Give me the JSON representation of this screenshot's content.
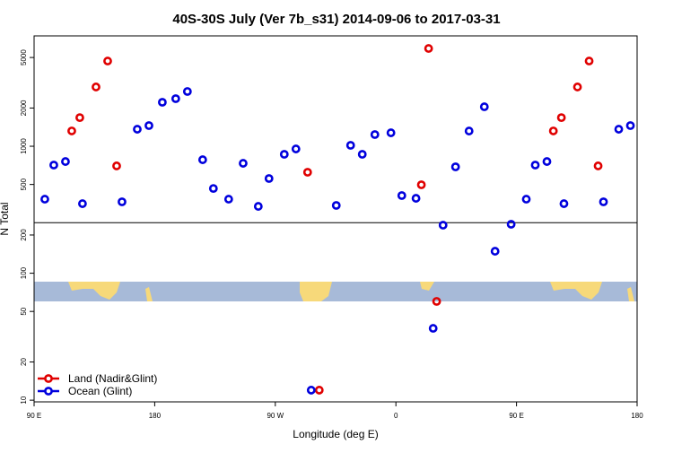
{
  "chart_data": {
    "type": "scatter",
    "title": "40S-30S July (Ver 7b_s31)   2014-09-06 to 2017-03-31",
    "xlabel": "Longitude (deg E)",
    "ylabel": "N Total",
    "xlim": [
      90,
      540
    ],
    "xticks": [
      {
        "value": 90,
        "label": "90 E"
      },
      {
        "value": 180,
        "label": "180"
      },
      {
        "value": 270,
        "label": "90 W"
      },
      {
        "value": 360,
        "label": "0"
      },
      {
        "value": 450,
        "label": "90 E"
      },
      {
        "value": 540,
        "label": "180"
      }
    ],
    "ylim": [
      9.7,
      7400
    ],
    "log_y": true,
    "yticks": [
      10,
      20,
      50,
      100,
      200,
      500,
      1000,
      2000,
      5000
    ],
    "hline": 250,
    "legend": "lower left",
    "series": [
      {
        "name": "Land (Nadir&Glint)",
        "color": "#e00000",
        "x": [
          118.1,
          124.1,
          136.2,
          144.9,
          151.6,
          294.1,
          302.8,
          384.4,
          379,
          390.4,
          477.5,
          483.5,
          495.5,
          504.2,
          510.9
        ],
        "values": [
          1320,
          1680,
          2930,
          4690,
          700,
          624,
          12,
          5890,
          497,
          60,
          1320,
          1680,
          2930,
          4690,
          700
        ]
      },
      {
        "name": "Ocean (Glint)",
        "color": "#0000dd",
        "x": [
          98,
          104.7,
          113.4,
          126.1,
          155.6,
          167,
          175.7,
          185.7,
          195.7,
          204.4,
          215.8,
          223.8,
          235.2,
          246,
          257.3,
          265.3,
          276.7,
          285.4,
          296.8,
          315.5,
          326.2,
          334.9,
          344.3,
          356.3,
          364.4,
          375,
          387.8,
          395.2,
          404.5,
          414.6,
          426,
          434,
          446,
          457.3,
          464,
          472.7,
          485.4,
          514.9,
          526.3,
          535
        ],
        "values": [
          383,
          711,
          758,
          353,
          365,
          1362,
          1454,
          2220,
          2370,
          2700,
          783,
          465,
          383,
          734,
          336,
          557,
          864,
          952,
          12,
          342,
          1017,
          864,
          1236,
          1276,
          409,
          389,
          36.8,
          239,
          688,
          1318,
          2046,
          149,
          243,
          383,
          711,
          758,
          353,
          365,
          1362,
          1454
        ]
      }
    ]
  }
}
